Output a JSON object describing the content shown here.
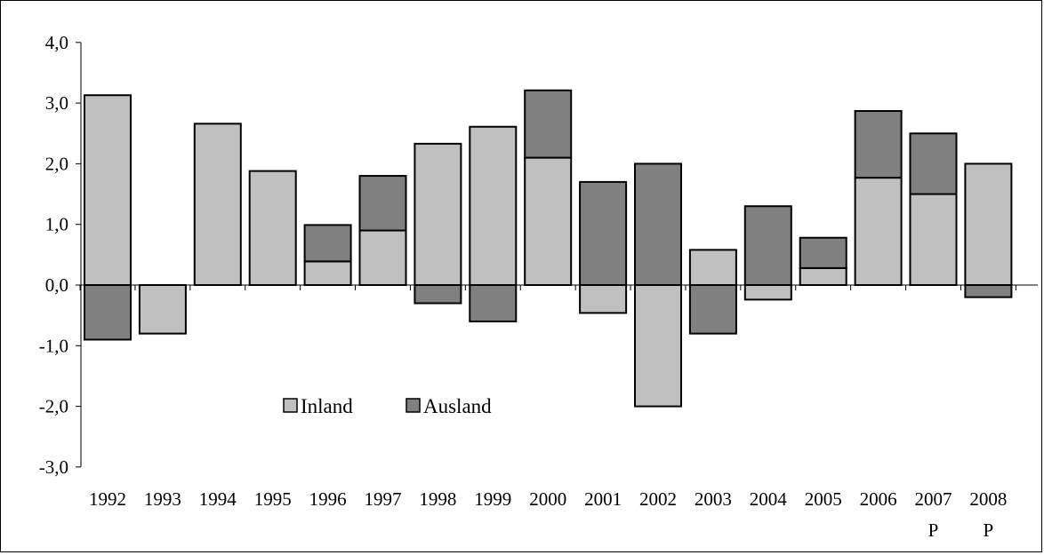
{
  "chart_data": {
    "type": "bar",
    "stacked": true,
    "categories": [
      "1992",
      "1993",
      "1994",
      "1995",
      "1996",
      "1997",
      "1998",
      "1999",
      "2000",
      "2001",
      "2002",
      "2003",
      "2004",
      "2005",
      "2006",
      "2007",
      "2008"
    ],
    "category_notes": [
      "",
      "",
      "",
      "",
      "",
      "",
      "",
      "",
      "",
      "",
      "",
      "",
      "",
      "",
      "",
      "P",
      "P"
    ],
    "series": [
      {
        "name": "Inland",
        "color": "#c0c0c0",
        "values": [
          3.13,
          -0.8,
          2.66,
          1.88,
          0.39,
          0.9,
          2.33,
          2.61,
          2.1,
          -0.46,
          -2.0,
          0.58,
          -0.24,
          0.28,
          1.77,
          1.5,
          2.0
        ]
      },
      {
        "name": "Ausland",
        "color": "#808080",
        "values": [
          -0.9,
          0.0,
          0.0,
          0.0,
          0.6,
          0.9,
          -0.3,
          -0.6,
          1.11,
          1.7,
          2.0,
          -0.8,
          1.3,
          0.5,
          1.1,
          1.0,
          -0.2
        ]
      }
    ],
    "ylim": [
      -3.0,
      4.0
    ],
    "yticks": [
      "-3,0",
      "-2,0",
      "-1,0",
      "0,0",
      "1,0",
      "2,0",
      "3,0",
      "4,0"
    ],
    "ytick_values": [
      -3,
      -2,
      -1,
      0,
      1,
      2,
      3,
      4
    ],
    "title": "",
    "xlabel": "",
    "ylabel": "",
    "grid": false,
    "legend": "center-left"
  }
}
